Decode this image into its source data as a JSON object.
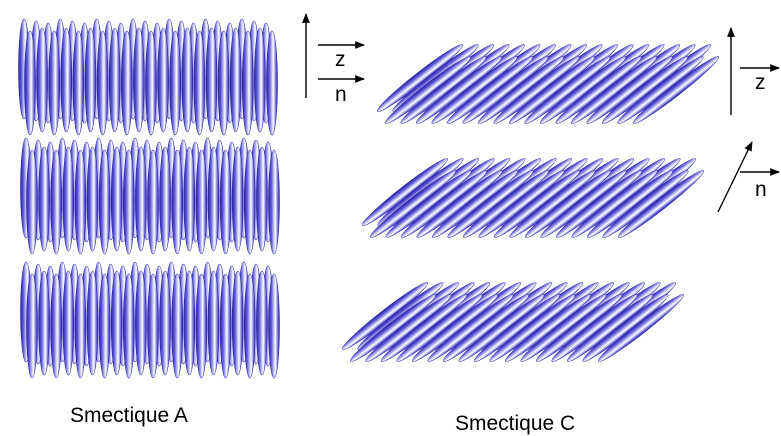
{
  "captions": {
    "smectic_a": "Smectique A",
    "smectic_c": "Smectique C"
  },
  "axis_labels": {
    "z": "z",
    "n": "n"
  },
  "colors": {
    "molecule_edge": "#2a23a8",
    "molecule_mid": "#5b57d4",
    "molecule_highlight": "#ffffff",
    "arrow": "#000000"
  }
}
